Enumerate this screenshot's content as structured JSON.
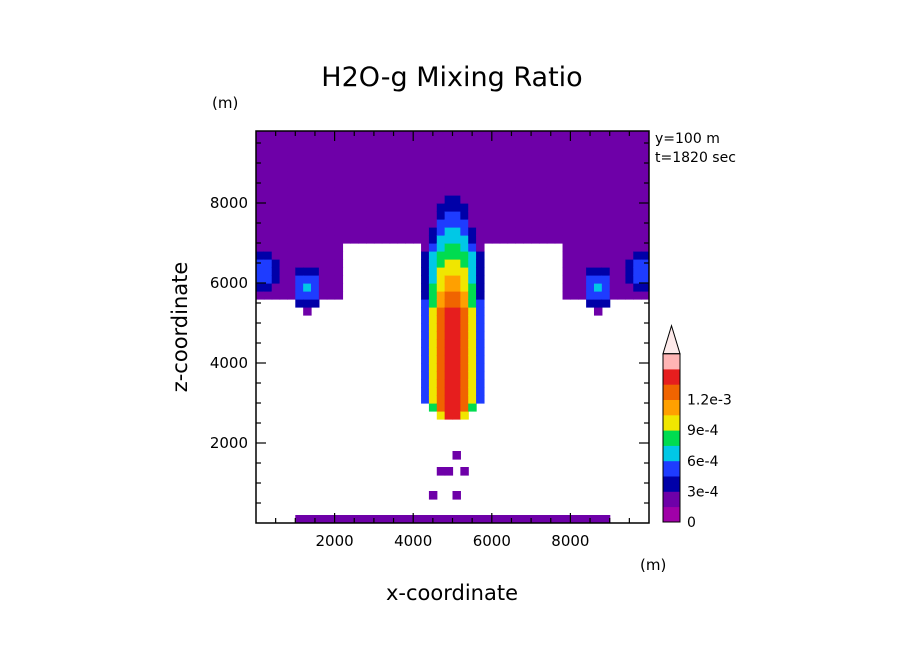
{
  "chart_data": {
    "type": "heatmap",
    "title": "H2O-g Mixing Ratio",
    "xlabel": "x-coordinate",
    "ylabel": "z-coordinate",
    "x_unit": "(m)",
    "y_unit": "(m)",
    "xlim": [
      0,
      10000
    ],
    "ylim": [
      0,
      9800
    ],
    "x_ticks": [
      2000,
      4000,
      6000,
      8000
    ],
    "y_ticks": [
      2000,
      4000,
      6000,
      8000
    ],
    "x_tick_labels": [
      "2000",
      "4000",
      "6000",
      "8000"
    ],
    "y_tick_labels": [
      "2000",
      "4000",
      "6000",
      "8000"
    ],
    "annotations": [
      "y=100 m",
      "t=1820 sec"
    ],
    "colorbar": {
      "levels": [
        0,
        0.00015,
        0.0003,
        0.00045,
        0.0006,
        0.00075,
        0.0009,
        0.00105,
        0.0012,
        0.00135
      ],
      "colors": [
        "#a000a8",
        "#6e00a8",
        "#0000a8",
        "#1e3cff",
        "#00c8e6",
        "#00dc50",
        "#f0e600",
        "#ffa000",
        "#f06400",
        "#e61e1e",
        "#ffb4b4",
        "#fde9e9"
      ],
      "tick_values": [
        0,
        0.0003,
        0.0006,
        0.0009,
        0.0012
      ],
      "tick_labels": [
        "0",
        "3e-4",
        "6e-4",
        "9e-4",
        "1.2e-3"
      ],
      "extend": "max"
    },
    "features": {
      "upper_layer": {
        "z_min": 7000,
        "z_max": 9800,
        "value": 0.0001
      },
      "central_plume": {
        "x_center": 5000,
        "z_bottom": 2500,
        "z_top": 8700,
        "peak_value": 0.00135
      },
      "side_cells": [
        {
          "x_center": 200,
          "z_center": 6300,
          "peak_value": 0.00045
        },
        {
          "x_center": 1300,
          "z_center": 5900,
          "peak_value": 0.00045
        },
        {
          "x_center": 8700,
          "z_center": 5900,
          "peak_value": 0.00045
        },
        {
          "x_center": 9800,
          "z_center": 6300,
          "peak_value": 0.00045
        }
      ],
      "low_level_fragments": {
        "z_min": 0,
        "z_max": 2100,
        "value": 0.0001
      }
    }
  }
}
